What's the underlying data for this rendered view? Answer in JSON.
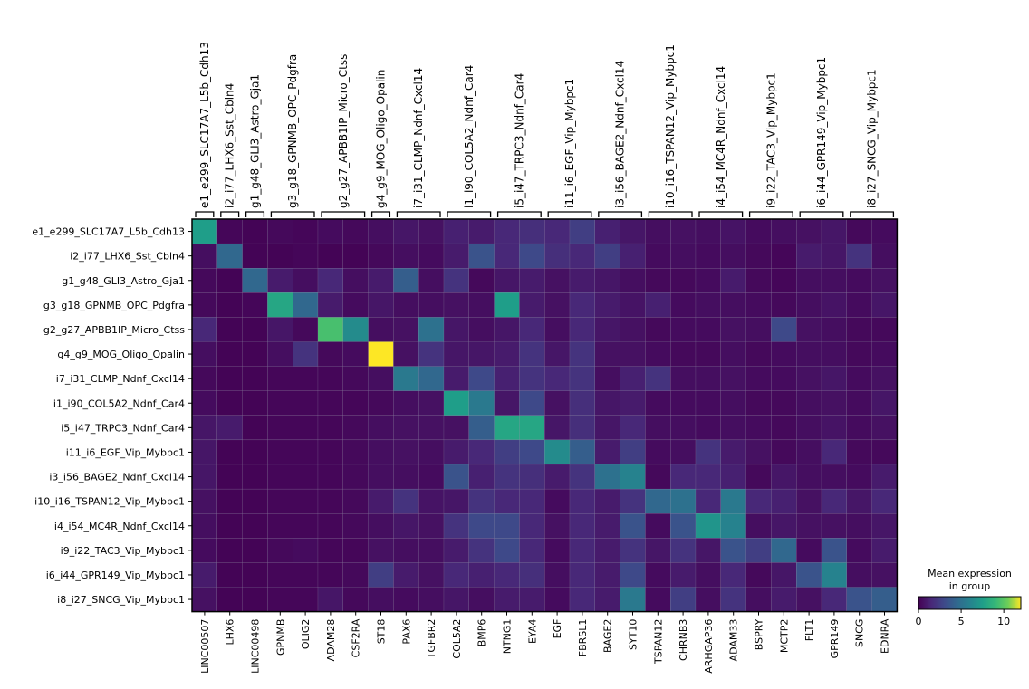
{
  "chart_data": {
    "type": "heatmap",
    "group_brackets": [
      "e1_e299_SLC17A7_L5b_Cdh13",
      "i2_i77_LHX6_Sst_Cbln4",
      "g1_g48_GLI3_Astro_Gja1",
      "g3_g18_GPNMB_OPC_Pdgfra",
      "g2_g27_APBB1IP_Micro_Ctss",
      "g4_g9_MOG_Oligo_Opalin",
      "i7_i31_CLMP_Ndnf_Cxcl14",
      "i1_i90_COL5A2_Ndnf_Car4",
      "i5_i47_TRPC3_Ndnf_Car4",
      "i11_i6_EGF_Vip_Mybpc1",
      "i3_i56_BAGE2_Ndnf_Cxcl14",
      "i10_i16_TSPAN12_Vip_Mybpc1",
      "i4_i54_MC4R_Ndnf_Cxcl14",
      "i9_i22_TAC3_Vip_Mybpc1",
      "i6_i44_GPR149_Vip_Mybpc1",
      "i8_i27_SNCG_Vip_Mybpc1"
    ],
    "bracket_spans": [
      1,
      1,
      1,
      2,
      2,
      1,
      2,
      2,
      2,
      2,
      2,
      2,
      2,
      2,
      2,
      2
    ],
    "rows": [
      "e1_e299_SLC17A7_L5b_Cdh13",
      "i2_i77_LHX6_Sst_Cbln4",
      "g1_g48_GLI3_Astro_Gja1",
      "g3_g18_GPNMB_OPC_Pdgfra",
      "g2_g27_APBB1IP_Micro_Ctss",
      "g4_g9_MOG_Oligo_Opalin",
      "i7_i31_CLMP_Ndnf_Cxcl14",
      "i1_i90_COL5A2_Ndnf_Car4",
      "i5_i47_TRPC3_Ndnf_Car4",
      "i11_i6_EGF_Vip_Mybpc1",
      "i3_i56_BAGE2_Ndnf_Cxcl14",
      "i10_i16_TSPAN12_Vip_Mybpc1",
      "i4_i54_MC4R_Ndnf_Cxcl14",
      "i9_i22_TAC3_Vip_Mybpc1",
      "i6_i44_GPR149_Vip_Mybpc1",
      "i8_i27_SNCG_Vip_Mybpc1"
    ],
    "columns": [
      "LINC00507",
      "LHX6",
      "LINC00498",
      "GPNMB",
      "OLIG2",
      "ADAM28",
      "CSF2RA",
      "ST18",
      "PAX6",
      "TGFBR2",
      "COL5A2",
      "BMP6",
      "NTNG1",
      "EYA4",
      "EGF",
      "FBRSL1",
      "BAGE2",
      "SYT10",
      "TSPAN12",
      "CHRNB3",
      "ARHGAP36",
      "ADAM33",
      "BSPRY",
      "MCTP2",
      "FLT1",
      "GPR149",
      "SNCG",
      "EDNRA"
    ],
    "values": [
      [
        7.5,
        0.2,
        0.1,
        0.3,
        0.2,
        0.4,
        0.3,
        0.5,
        0.8,
        0.6,
        1.2,
        1.0,
        1.5,
        1.8,
        1.5,
        2.5,
        1.2,
        0.8,
        0.5,
        0.6,
        0.5,
        0.7,
        0.4,
        0.5,
        0.6,
        0.8,
        0.3,
        0.4
      ],
      [
        0.5,
        4.5,
        0.1,
        0.1,
        0.2,
        0.1,
        0.1,
        0.3,
        0.5,
        0.4,
        1.0,
        3.5,
        1.5,
        3.0,
        1.8,
        1.5,
        2.5,
        1.2,
        0.4,
        0.5,
        0.4,
        0.5,
        0.3,
        0.2,
        1.0,
        0.8,
        2.0,
        0.5
      ],
      [
        0.3,
        0.1,
        4.5,
        1.0,
        0.5,
        1.5,
        0.5,
        1.0,
        4.0,
        0.5,
        2.0,
        0.3,
        0.8,
        1.0,
        0.6,
        1.0,
        0.8,
        0.5,
        0.3,
        0.3,
        0.4,
        1.0,
        0.3,
        0.2,
        0.5,
        0.5,
        0.4,
        0.6
      ],
      [
        0.3,
        0.1,
        0.2,
        8.0,
        4.5,
        1.0,
        0.4,
        0.8,
        0.5,
        0.5,
        0.6,
        0.5,
        7.5,
        1.0,
        0.6,
        1.5,
        1.0,
        0.7,
        1.2,
        0.4,
        0.5,
        0.5,
        0.4,
        0.3,
        0.5,
        0.7,
        0.4,
        0.8
      ],
      [
        1.5,
        0.1,
        0.1,
        0.8,
        0.3,
        9.5,
        6.5,
        0.5,
        0.6,
        5.0,
        0.8,
        0.5,
        0.8,
        1.5,
        0.5,
        1.5,
        0.8,
        0.6,
        0.3,
        0.4,
        0.4,
        0.6,
        0.5,
        3.0,
        0.6,
        0.5,
        0.3,
        0.3
      ],
      [
        0.5,
        0.1,
        0.1,
        0.5,
        2.0,
        0.3,
        0.4,
        12.0,
        0.6,
        2.0,
        0.8,
        0.8,
        1.0,
        2.0,
        0.8,
        2.0,
        0.6,
        0.6,
        0.4,
        0.3,
        0.3,
        0.5,
        0.3,
        0.4,
        0.5,
        0.5,
        0.3,
        0.4
      ],
      [
        0.3,
        0.1,
        0.1,
        0.2,
        0.2,
        0.2,
        0.3,
        0.5,
        5.5,
        4.5,
        1.0,
        3.0,
        1.2,
        2.0,
        1.5,
        2.0,
        0.5,
        1.2,
        2.0,
        0.5,
        0.5,
        0.6,
        0.4,
        0.4,
        0.6,
        0.8,
        0.4,
        0.6
      ],
      [
        0.4,
        0.1,
        0.1,
        0.2,
        0.2,
        0.2,
        0.2,
        0.3,
        0.5,
        0.6,
        7.5,
        5.5,
        0.8,
        3.0,
        0.6,
        1.8,
        0.8,
        1.0,
        0.4,
        0.4,
        0.4,
        0.5,
        0.3,
        0.3,
        0.5,
        0.6,
        0.4,
        0.8
      ],
      [
        0.8,
        1.0,
        0.1,
        0.2,
        0.2,
        0.2,
        0.3,
        0.5,
        0.6,
        0.6,
        0.6,
        4.0,
        8.0,
        8.0,
        0.8,
        1.8,
        0.8,
        1.5,
        0.5,
        0.5,
        0.4,
        0.5,
        0.4,
        0.3,
        0.5,
        0.7,
        0.4,
        0.6
      ],
      [
        0.8,
        0.1,
        0.1,
        0.2,
        0.2,
        0.2,
        0.3,
        0.5,
        0.6,
        0.5,
        1.0,
        1.5,
        2.5,
        3.0,
        6.5,
        4.0,
        1.0,
        2.5,
        0.4,
        0.5,
        2.0,
        1.0,
        0.6,
        0.3,
        0.5,
        1.5,
        0.3,
        0.3
      ],
      [
        0.8,
        0.1,
        0.1,
        0.2,
        0.2,
        0.2,
        0.3,
        0.5,
        0.5,
        0.4,
        3.5,
        1.2,
        2.0,
        1.8,
        1.0,
        2.0,
        5.0,
        6.0,
        0.3,
        1.5,
        1.5,
        1.2,
        0.3,
        0.8,
        0.5,
        0.5,
        0.4,
        1.0
      ],
      [
        0.6,
        0.1,
        0.1,
        0.2,
        0.2,
        0.2,
        0.3,
        1.0,
        2.0,
        0.7,
        0.8,
        2.0,
        1.5,
        1.5,
        0.4,
        1.5,
        1.0,
        2.0,
        4.5,
        5.0,
        1.5,
        5.5,
        1.5,
        1.2,
        0.6,
        1.5,
        0.8,
        1.5
      ],
      [
        0.5,
        0.1,
        0.1,
        0.2,
        0.2,
        0.2,
        0.3,
        0.5,
        0.8,
        0.6,
        2.0,
        3.0,
        3.0,
        1.5,
        0.6,
        1.5,
        1.0,
        3.5,
        0.4,
        3.5,
        7.0,
        6.0,
        0.5,
        0.8,
        0.6,
        0.6,
        0.5,
        0.8
      ],
      [
        0.4,
        0.1,
        0.1,
        0.3,
        0.4,
        0.2,
        0.2,
        0.6,
        0.5,
        0.5,
        1.0,
        2.0,
        3.0,
        1.5,
        0.4,
        1.5,
        1.0,
        2.0,
        0.8,
        2.0,
        0.8,
        3.5,
        2.5,
        4.5,
        0.4,
        3.5,
        0.4,
        1.0
      ],
      [
        1.0,
        0.1,
        0.1,
        0.2,
        0.2,
        0.2,
        0.3,
        2.5,
        1.0,
        0.6,
        1.5,
        1.2,
        1.5,
        1.8,
        0.5,
        1.5,
        1.0,
        3.0,
        0.4,
        1.0,
        0.5,
        1.5,
        0.3,
        0.8,
        3.5,
        6.0,
        0.5,
        0.6
      ],
      [
        0.6,
        0.1,
        0.1,
        0.2,
        0.2,
        0.8,
        0.3,
        0.5,
        0.4,
        0.5,
        0.8,
        0.5,
        1.0,
        1.0,
        0.4,
        1.5,
        1.0,
        5.5,
        0.4,
        2.5,
        0.5,
        2.0,
        0.5,
        1.0,
        0.6,
        1.5,
        3.5,
        4.0
      ]
    ],
    "colormap": "viridis",
    "vmin": 0,
    "vmax": 12,
    "colorbar": {
      "title_line1": "Mean expression",
      "title_line2": "in group",
      "ticks": [
        0,
        5,
        10
      ],
      "tick_labels": [
        "0",
        "5",
        "10"
      ]
    }
  }
}
